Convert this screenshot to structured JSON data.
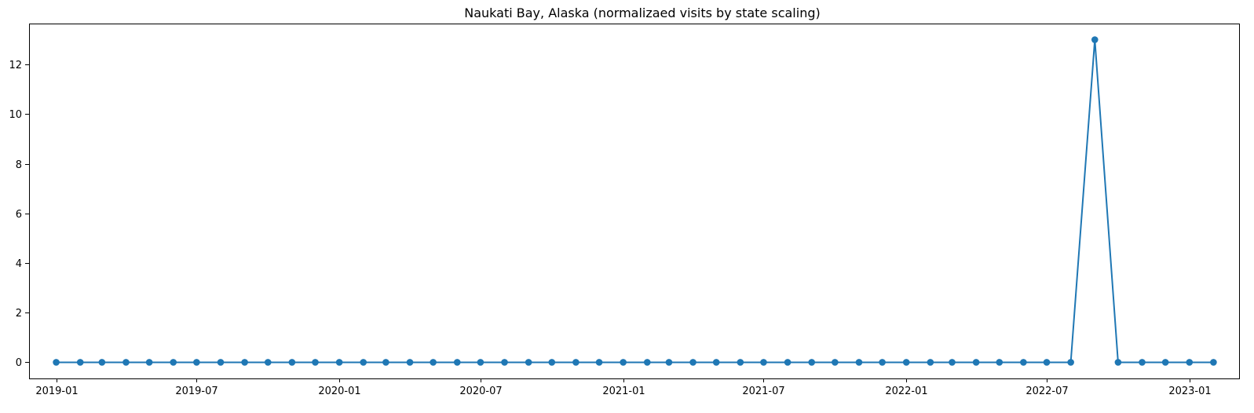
{
  "chart_data": {
    "type": "line",
    "title": "Naukati Bay, Alaska (normalizaed visits by state scaling)",
    "xlabel": "",
    "ylabel": "",
    "x": [
      "2019-01",
      "2019-02",
      "2019-03",
      "2019-04",
      "2019-05",
      "2019-06",
      "2019-07",
      "2019-08",
      "2019-09",
      "2019-10",
      "2019-11",
      "2019-12",
      "2020-01",
      "2020-02",
      "2020-03",
      "2020-04",
      "2020-05",
      "2020-06",
      "2020-07",
      "2020-08",
      "2020-09",
      "2020-10",
      "2020-11",
      "2020-12",
      "2021-01",
      "2021-02",
      "2021-03",
      "2021-04",
      "2021-05",
      "2021-06",
      "2021-07",
      "2021-08",
      "2021-09",
      "2021-10",
      "2021-11",
      "2021-12",
      "2022-01",
      "2022-02",
      "2022-03",
      "2022-04",
      "2022-05",
      "2022-06",
      "2022-07",
      "2022-08",
      "2022-09",
      "2022-10",
      "2022-11",
      "2022-12",
      "2023-01",
      "2023-02"
    ],
    "series": [
      {
        "values": [
          0,
          0,
          0,
          0,
          0,
          0,
          0,
          0,
          0,
          0,
          0,
          0,
          0,
          0,
          0,
          0,
          0,
          0,
          0,
          0,
          0,
          0,
          0,
          0,
          0,
          0,
          0,
          0,
          0,
          0,
          0,
          0,
          0,
          0,
          0,
          0,
          0,
          0,
          0,
          0,
          0,
          0,
          0,
          0,
          13,
          0,
          0,
          0,
          0,
          0
        ],
        "color": "#1f77b4"
      }
    ],
    "xticks": [
      "2019-01",
      "2019-07",
      "2020-01",
      "2020-07",
      "2021-01",
      "2021-07",
      "2022-01",
      "2022-07",
      "2023-01"
    ],
    "yticks": [
      0,
      2,
      4,
      6,
      8,
      10,
      12
    ],
    "ylim": [
      -0.65,
      13.65
    ],
    "xlim": [
      "2018-11-27",
      "2023-03-06"
    ],
    "grid": false,
    "legend": "none"
  }
}
